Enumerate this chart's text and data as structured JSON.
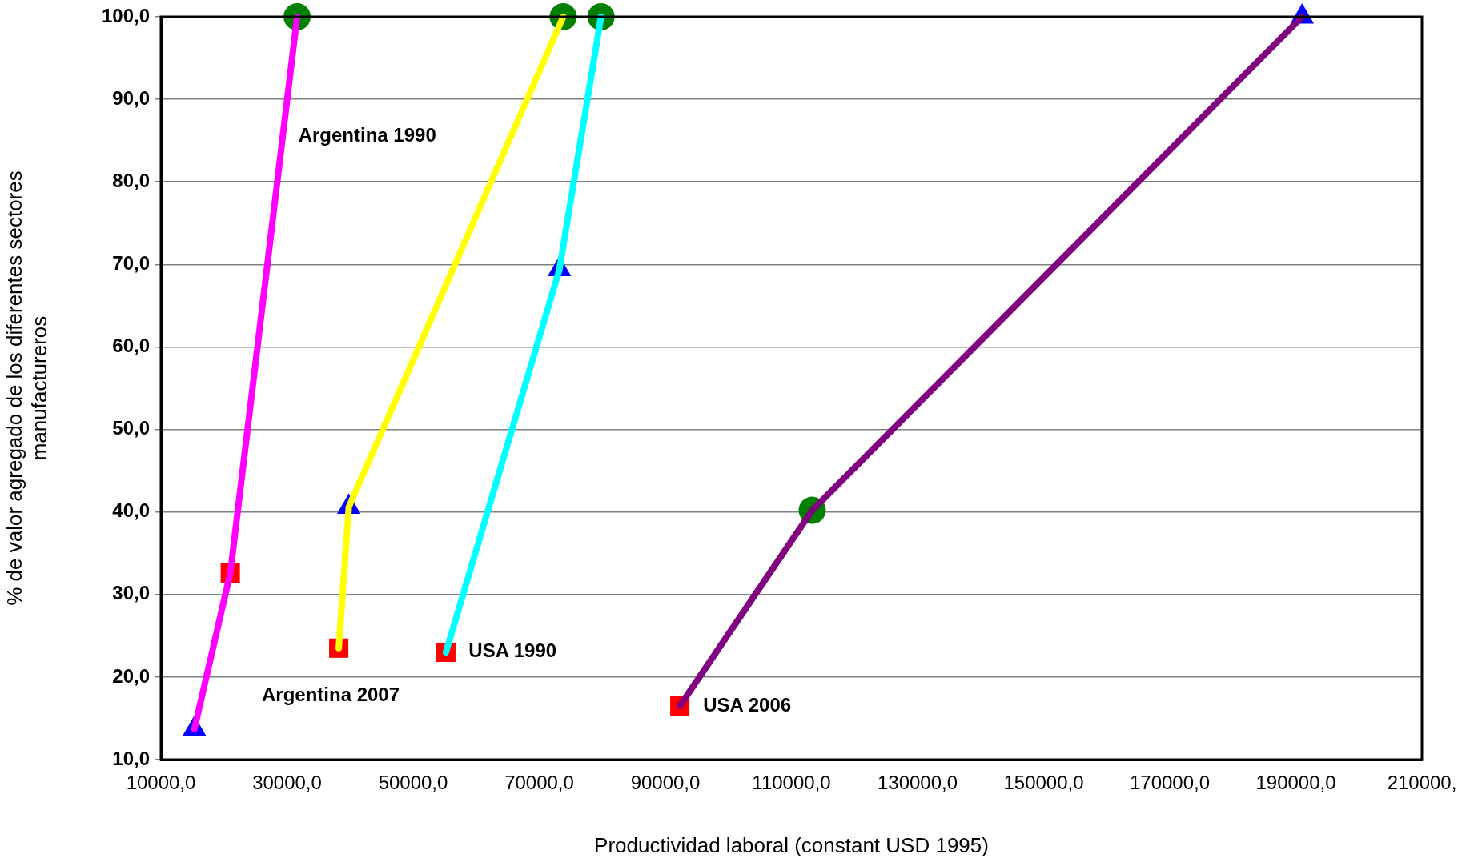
{
  "chart_data": {
    "type": "line",
    "xlabel": "Productividad laboral (constant USD 1995)",
    "ylabel": "% de valor agregado de los diferentes sectores\nmanufactureros",
    "xlim": [
      10000,
      210000
    ],
    "xticks": [
      {
        "value": 10000,
        "label": "10000,0"
      },
      {
        "value": 30000,
        "label": "30000,0"
      },
      {
        "value": 50000,
        "label": "50000,0"
      },
      {
        "value": 70000,
        "label": "70000,0"
      },
      {
        "value": 90000,
        "label": "90000,0"
      },
      {
        "value": 110000,
        "label": "110000,0"
      },
      {
        "value": 130000,
        "label": "130000,0"
      },
      {
        "value": 150000,
        "label": "150000,0"
      },
      {
        "value": 170000,
        "label": "170000,0"
      },
      {
        "value": 190000,
        "label": "190000,0"
      },
      {
        "value": 210000,
        "label": "210000,"
      }
    ],
    "ylim": [
      10,
      100
    ],
    "yticks": [
      {
        "value": 10,
        "label": "10,0"
      },
      {
        "value": 20,
        "label": "20,0"
      },
      {
        "value": 30,
        "label": "30,0"
      },
      {
        "value": 40,
        "label": "40,0"
      },
      {
        "value": 50,
        "label": "50,0"
      },
      {
        "value": 60,
        "label": "60,0"
      },
      {
        "value": 70,
        "label": "70,0"
      },
      {
        "value": 80,
        "label": "80,0"
      },
      {
        "value": 90,
        "label": "90,0"
      },
      {
        "value": 100,
        "label": "100,0"
      }
    ],
    "grid": "y",
    "legend": false,
    "series": [
      {
        "marker": "none",
        "color": "#ff00ff",
        "x": [
          15300,
          21000,
          31600
        ],
        "values": [
          13.7,
          32.6,
          100
        ]
      },
      {
        "marker": "none",
        "color": "#ffff00",
        "x": [
          38200,
          39800,
          73800
        ],
        "values": [
          23.5,
          40.6,
          100
        ]
      },
      {
        "marker": "none",
        "color": "#00ffff",
        "x": [
          55200,
          73200,
          79800
        ],
        "values": [
          23.0,
          69.4,
          100
        ]
      },
      {
        "marker": "none",
        "color": "#800080",
        "x": [
          92300,
          113300,
          191000
        ],
        "values": [
          16.5,
          40.2,
          100
        ]
      },
      {
        "type": "scatter",
        "marker": "square",
        "color": "#ff0000",
        "x": [
          21000,
          38200,
          55200,
          92300
        ],
        "values": [
          32.6,
          23.5,
          23.0,
          16.5
        ]
      },
      {
        "type": "scatter",
        "marker": "triangle",
        "color": "#0000ff",
        "x": [
          15300,
          39800,
          73200,
          191000
        ],
        "values": [
          13.7,
          40.6,
          69.4,
          100
        ]
      },
      {
        "type": "scatter",
        "marker": "circle",
        "color": "#008000",
        "x": [
          31600,
          73800,
          79800,
          113300
        ],
        "values": [
          100,
          100,
          100,
          40.2
        ]
      }
    ],
    "annotations": [
      "Argentina 1990",
      "Argentina 2007",
      "USA 1990",
      "USA 2006"
    ]
  }
}
